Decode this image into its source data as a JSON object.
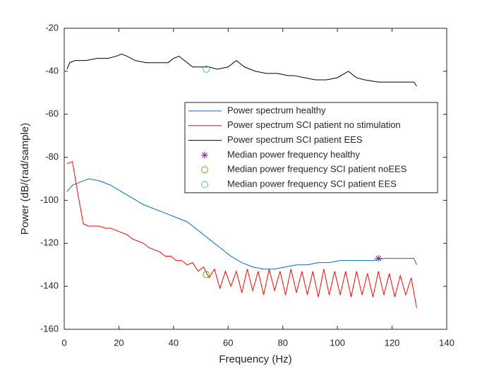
{
  "chart_data": {
    "type": "line",
    "x_label": "Frequency (Hz)",
    "y_label": "Power (dB/(rad/sample)",
    "xlim": [
      0,
      140
    ],
    "ylim": [
      -160,
      -20
    ],
    "xticks": [
      0,
      20,
      40,
      60,
      80,
      100,
      120,
      140
    ],
    "yticks": [
      -160,
      -140,
      -120,
      -100,
      -80,
      -60,
      -40,
      -20
    ],
    "legend": "east",
    "series": [
      {
        "name": "Power spectrum healthy",
        "color": "#0072bd",
        "x": [
          1,
          3,
          5,
          9,
          13,
          17,
          21,
          25,
          29,
          33,
          37,
          41,
          45,
          49,
          53,
          57,
          61,
          65,
          69,
          73,
          77,
          81,
          85,
          89,
          93,
          97,
          101,
          105,
          109,
          113,
          117,
          121,
          125,
          128,
          129
        ],
        "values": [
          -96,
          -93,
          -92,
          -90,
          -91,
          -93,
          -96,
          -99,
          -102,
          -104,
          -106,
          -108,
          -110,
          -114,
          -118,
          -122,
          -126,
          -129,
          -131,
          -132,
          -132,
          -131,
          -130,
          -130,
          -129,
          -129,
          -128,
          -128,
          -128,
          -128,
          -127,
          -127,
          -127,
          -127,
          -130
        ]
      },
      {
        "name": "Power spectrum SCI patient no stimulation",
        "color": "#ff0000",
        "x": [
          1,
          3,
          5,
          7,
          9,
          11,
          13,
          15,
          17,
          19,
          21,
          23,
          25,
          27,
          29,
          31,
          33,
          35,
          37,
          39,
          41,
          43,
          45,
          47,
          49,
          51,
          53,
          55,
          57,
          59,
          61,
          63,
          65,
          67,
          69,
          71,
          73,
          75,
          77,
          79,
          81,
          83,
          85,
          87,
          89,
          91,
          93,
          95,
          97,
          99,
          101,
          103,
          105,
          107,
          109,
          111,
          113,
          115,
          117,
          119,
          121,
          123,
          125,
          127,
          129
        ],
        "values": [
          -83,
          -82,
          -97,
          -111,
          -112,
          -112,
          -112,
          -113,
          -113,
          -114,
          -115,
          -116,
          -118,
          -119,
          -120,
          -122,
          -123,
          -124,
          -126,
          -126,
          -128,
          -128,
          -130,
          -129,
          -133,
          -131,
          -136,
          -132,
          -141,
          -133,
          -140,
          -133,
          -143,
          -132,
          -142,
          -133,
          -144,
          -132,
          -142,
          -133,
          -144,
          -132,
          -143,
          -133,
          -144,
          -133,
          -145,
          -132,
          -144,
          -133,
          -144,
          -133,
          -145,
          -133,
          -144,
          -134,
          -145,
          -133,
          -144,
          -134,
          -145,
          -135,
          -144,
          -136,
          -150
        ]
      },
      {
        "name": "Power spectrum SCI patient EES",
        "color": "#000000",
        "x": [
          1,
          2,
          4,
          8,
          12,
          16,
          19,
          21,
          23,
          26,
          30,
          34,
          38,
          40,
          42,
          44,
          47,
          50,
          53,
          56,
          60,
          63,
          66,
          70,
          74,
          78,
          82,
          84,
          88,
          92,
          96,
          100,
          104,
          107,
          110,
          115,
          120,
          125,
          128,
          129
        ],
        "values": [
          -39,
          -36,
          -35,
          -35,
          -34,
          -34,
          -33,
          -32,
          -33,
          -35,
          -36,
          -36,
          -36,
          -34,
          -33,
          -35,
          -38,
          -38,
          -38,
          -39,
          -38,
          -35,
          -38,
          -40,
          -41,
          -41,
          -42,
          -42,
          -43,
          -44,
          -44,
          -43,
          -40,
          -43,
          -44,
          -45,
          -45,
          -45,
          -45,
          -47
        ]
      },
      {
        "name": "Median power frequency healthy",
        "color": "#7e2f8e",
        "marker": "asterisk",
        "x": [
          115
        ],
        "values": [
          -127
        ]
      },
      {
        "name": "Median power frequency SCI patient noEES",
        "color": "#77ac30",
        "marker": "circle",
        "x": [
          52
        ],
        "values": [
          -134.5
        ]
      },
      {
        "name": "Median power frequency SCI patient EES",
        "color": "#4dbeee",
        "marker": "circle",
        "x": [
          52
        ],
        "values": [
          -39
        ]
      }
    ]
  }
}
